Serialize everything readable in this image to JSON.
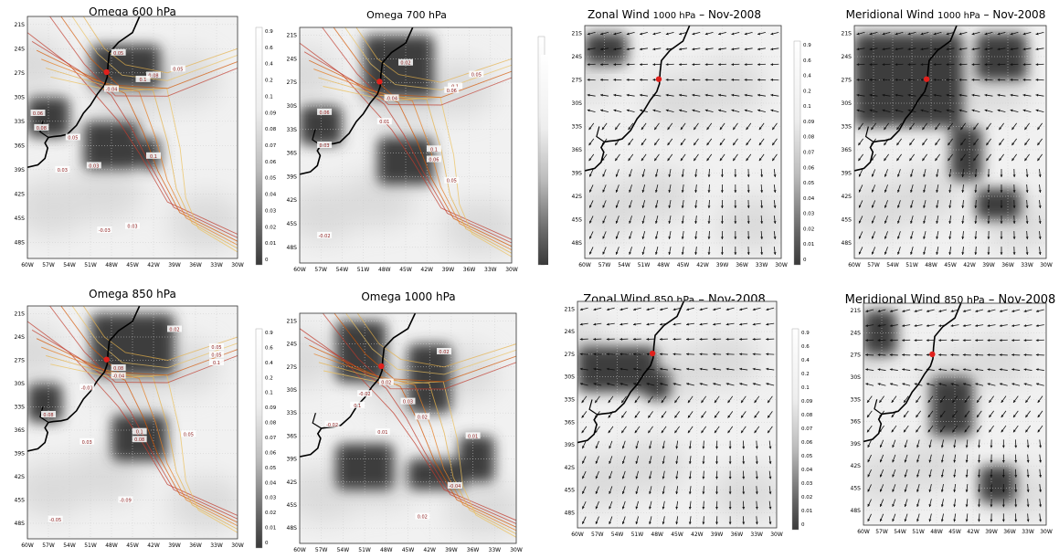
{
  "lat_ticks": [
    "21S",
    "24S",
    "27S",
    "30S",
    "33S",
    "36S",
    "39S",
    "42S",
    "45S",
    "48S"
  ],
  "lon_ticks": [
    "60W",
    "57W",
    "54W",
    "51W",
    "48W",
    "45W",
    "42W",
    "39W",
    "36W",
    "33W",
    "30W"
  ],
  "colorbar_levels": [
    "0.9",
    "0.6",
    "0.4",
    "0.2",
    "0.1",
    "0.09",
    "0.08",
    "0.07",
    "0.06",
    "0.05",
    "0.04",
    "0.03",
    "0.02",
    "0.01",
    "0"
  ],
  "panels": [
    {
      "id": "omega-600",
      "title_parts": [
        "Omega 600 hPa"
      ],
      "kind": "omega",
      "dark_regions": [
        {
          "lon": [
            -51,
            -41
          ],
          "lat": [
            -23.5,
            -29
          ]
        },
        {
          "lon": [
            -60,
            -54
          ],
          "lat": [
            -30,
            -35
          ]
        },
        {
          "lon": [
            -52,
            -44
          ],
          "lat": [
            -33,
            -39
          ]
        },
        {
          "lon": [
            -44,
            -41
          ],
          "lat": [
            -35,
            -39
          ]
        }
      ],
      "labels": [
        {
          "text": "0.05",
          "lon": -47,
          "lat": -24.5
        },
        {
          "text": "0.05",
          "lon": -38.5,
          "lat": -26.5
        },
        {
          "text": "0.08",
          "lon": -42,
          "lat": -27.3
        },
        {
          "text": "0.1",
          "lon": -43.5,
          "lat": -27.8
        },
        {
          "text": "-0.04",
          "lon": -48,
          "lat": -29
        },
        {
          "text": "0.06",
          "lon": -58.5,
          "lat": -32
        },
        {
          "text": "0.08",
          "lon": -58,
          "lat": -33.8
        },
        {
          "text": "0.05",
          "lon": -53.5,
          "lat": -35
        },
        {
          "text": "0.1",
          "lon": -42,
          "lat": -37.3
        },
        {
          "text": "0.03",
          "lon": -50.5,
          "lat": -38.5
        },
        {
          "text": "0.03",
          "lon": -55,
          "lat": -39
        },
        {
          "text": "-0.03",
          "lon": -49,
          "lat": -46.5
        },
        {
          "text": "0.03",
          "lon": -45,
          "lat": -46
        }
      ]
    },
    {
      "id": "omega-700",
      "title_parts": [
        "Omega 700 hPa"
      ],
      "kind": "omega",
      "dark_regions": [
        {
          "lon": [
            -51,
            -41
          ],
          "lat": [
            -21,
            -29
          ]
        },
        {
          "lon": [
            -60,
            -54
          ],
          "lat": [
            -30,
            -35
          ]
        },
        {
          "lon": [
            -49,
            -41
          ],
          "lat": [
            -34,
            -40
          ]
        }
      ],
      "labels": [
        {
          "text": "0.02",
          "lon": -45,
          "lat": -24.5
        },
        {
          "text": "0.05",
          "lon": -35,
          "lat": -26
        },
        {
          "text": "0.1",
          "lon": -38,
          "lat": -27.5
        },
        {
          "text": "0.06",
          "lon": -38.5,
          "lat": -28
        },
        {
          "text": "-0.04",
          "lon": -47,
          "lat": -29
        },
        {
          "text": "0.06",
          "lon": -56.5,
          "lat": -30.8
        },
        {
          "text": "0.03",
          "lon": -56.5,
          "lat": -35
        },
        {
          "text": "0.1",
          "lon": -41,
          "lat": -35.5
        },
        {
          "text": "0.06",
          "lon": -41,
          "lat": -36.8
        },
        {
          "text": "0.01",
          "lon": -48,
          "lat": -32
        },
        {
          "text": "0.05",
          "lon": -38.5,
          "lat": -39.5
        },
        {
          "text": "-0.02",
          "lon": -56.5,
          "lat": -46.5
        }
      ]
    },
    {
      "id": "zonal-1000",
      "title_parts": [
        "Zonal Wind ",
        "1000 hPa",
        " – Nov-2008"
      ],
      "kind": "wind-zonal",
      "dark_regions": [
        {
          "lon": [
            -60,
            -53.5
          ],
          "lat": [
            -21,
            -25
          ]
        }
      ],
      "labels": []
    },
    {
      "id": "meridional-1000",
      "title_parts": [
        "Meridional Wind ",
        "1000 hPa",
        " – Nov-2008"
      ],
      "kind": "wind-meridional",
      "dark_regions": [
        {
          "lon": [
            -60,
            -43
          ],
          "lat": [
            -21,
            -33
          ]
        },
        {
          "lon": [
            -45,
            -40
          ],
          "lat": [
            -33,
            -40
          ]
        },
        {
          "lon": [
            -41,
            -33
          ],
          "lat": [
            -21,
            -27
          ]
        },
        {
          "lon": [
            -41,
            -34
          ],
          "lat": [
            -41,
            -45
          ]
        }
      ],
      "labels": []
    },
    {
      "id": "omega-850",
      "title_parts": [
        "Omega 850 hPa"
      ],
      "kind": "omega",
      "dark_regions": [
        {
          "lon": [
            -51,
            -39
          ],
          "lat": [
            -21,
            -29
          ]
        },
        {
          "lon": [
            -60,
            -55
          ],
          "lat": [
            -30,
            -35
          ]
        },
        {
          "lon": [
            -48,
            -40
          ],
          "lat": [
            -34,
            -40
          ]
        }
      ],
      "labels": [
        {
          "text": "0.02",
          "lon": -39,
          "lat": -23
        },
        {
          "text": "0.05",
          "lon": -33,
          "lat": -25.3
        },
        {
          "text": "0.05",
          "lon": -33,
          "lat": -26.3
        },
        {
          "text": "0.1",
          "lon": -33,
          "lat": -27.3
        },
        {
          "text": "0.08",
          "lon": -47,
          "lat": -28
        },
        {
          "text": "-0.04",
          "lon": -47,
          "lat": -29
        },
        {
          "text": "0.08",
          "lon": -57,
          "lat": -34
        },
        {
          "text": "0.1",
          "lon": -44,
          "lat": -36.2
        },
        {
          "text": "0.08",
          "lon": -44,
          "lat": -37.2
        },
        {
          "text": "-0.01",
          "lon": -51.5,
          "lat": -30.5
        },
        {
          "text": "0.03",
          "lon": -51.5,
          "lat": -37.5
        },
        {
          "text": "0.05",
          "lon": -37,
          "lat": -36.5
        },
        {
          "text": "-0.09",
          "lon": -46,
          "lat": -45
        },
        {
          "text": "-0.05",
          "lon": -56,
          "lat": -47.5
        }
      ]
    },
    {
      "id": "omega-1000",
      "title_parts": [
        "Omega 1000 hPa"
      ],
      "kind": "omega",
      "dark_regions": [
        {
          "lon": [
            -55,
            -48
          ],
          "lat": [
            -21,
            -29
          ]
        },
        {
          "lon": [
            -45,
            -39
          ],
          "lat": [
            -24,
            -33
          ]
        },
        {
          "lon": [
            -55,
            -47
          ],
          "lat": [
            -37,
            -43
          ]
        },
        {
          "lon": [
            -45,
            -37
          ],
          "lat": [
            -39,
            -43
          ]
        },
        {
          "lon": [
            -38,
            -33
          ],
          "lat": [
            -36,
            -42
          ]
        }
      ],
      "labels": [
        {
          "text": "0.02",
          "lon": -40,
          "lat": -25
        },
        {
          "text": "0.02",
          "lon": -48,
          "lat": -29
        },
        {
          "text": "-0.02",
          "lon": -51,
          "lat": -30.5
        },
        {
          "text": "0.1",
          "lon": -52,
          "lat": -32
        },
        {
          "text": "0.03",
          "lon": -45,
          "lat": -31.5
        },
        {
          "text": "0.02",
          "lon": -43,
          "lat": -33.5
        },
        {
          "text": "-0.02",
          "lon": -55.5,
          "lat": -34.5
        },
        {
          "text": "0.01",
          "lon": -48.5,
          "lat": -35.5
        },
        {
          "text": "0.01",
          "lon": -36,
          "lat": -36
        },
        {
          "text": "-0.04",
          "lon": -38.5,
          "lat": -42.5
        },
        {
          "text": "0.02",
          "lon": -43,
          "lat": -46.5
        }
      ]
    },
    {
      "id": "zonal-850",
      "title_parts": [
        "Zonal Wind ",
        "850 hPa",
        " – Nov-2008"
      ],
      "kind": "wind-zonal",
      "dark_regions": [
        {
          "lon": [
            -60,
            -48
          ],
          "lat": [
            -26,
            -32
          ]
        },
        {
          "lon": [
            -50,
            -46
          ],
          "lat": [
            -29,
            -33
          ]
        }
      ],
      "labels": []
    },
    {
      "id": "meridional-850",
      "title_parts": [
        "Meridional Wind ",
        "850 hPa",
        " – Nov-2008"
      ],
      "kind": "wind-meridional",
      "dark_regions": [
        {
          "lon": [
            -60,
            -54.5
          ],
          "lat": [
            -21,
            -27
          ]
        },
        {
          "lon": [
            -49,
            -42
          ],
          "lat": [
            -30,
            -38
          ]
        },
        {
          "lon": [
            -41,
            -35
          ],
          "lat": [
            -42,
            -47
          ]
        }
      ],
      "labels": []
    }
  ]
}
